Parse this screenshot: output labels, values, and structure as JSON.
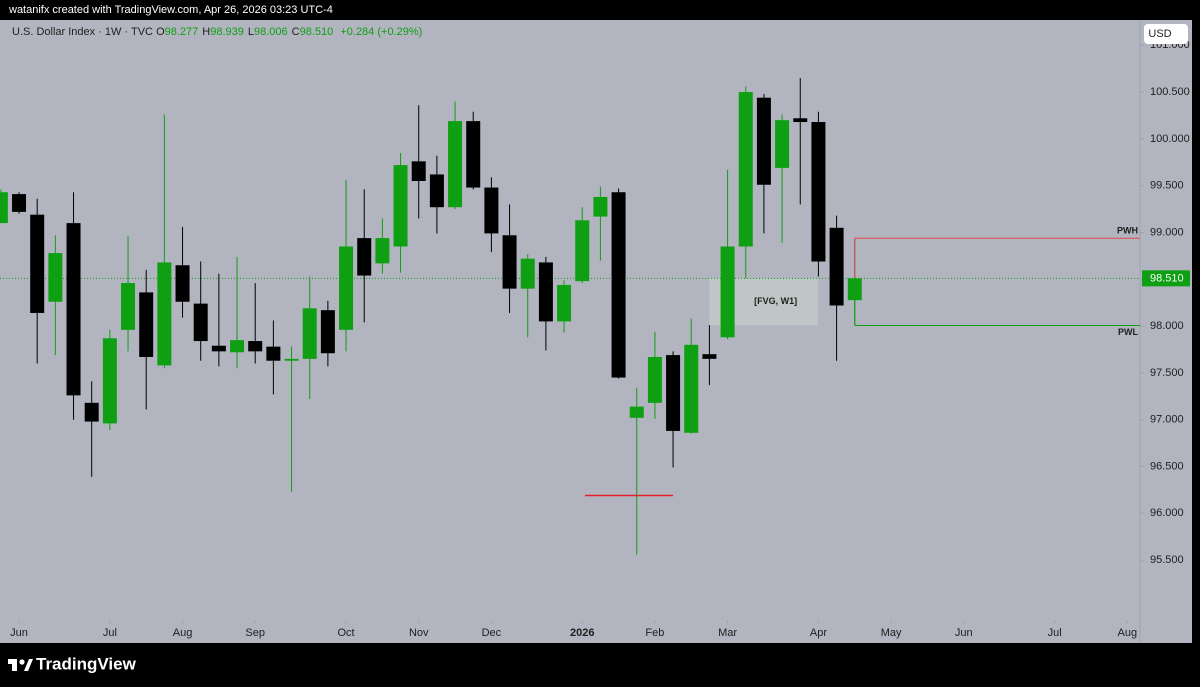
{
  "credit": "watanifx created with TradingView.com, Apr 26, 2026 03:23 UTC-4",
  "legend": {
    "symbol": "U.S. Dollar Index · 1W · TVC",
    "ohlc": [
      {
        "key": "O",
        "value": "98.277"
      },
      {
        "key": "H",
        "value": "98.939"
      },
      {
        "key": "L",
        "value": "98.006"
      },
      {
        "key": "C",
        "value": "98.510"
      }
    ],
    "change": "+0.284 (+0.29%)"
  },
  "currency": "USD",
  "brand": "TradingView",
  "chart_data": {
    "type": "candlestick",
    "categories": [
      null,
      null,
      null,
      null,
      null,
      null,
      null,
      null,
      null,
      null,
      null,
      null,
      null,
      null,
      null,
      null,
      null,
      null,
      null,
      null,
      null,
      null,
      null,
      null,
      null,
      null,
      null,
      null,
      null,
      null,
      null,
      null,
      null,
      null,
      null,
      null,
      null,
      null,
      null,
      null,
      null,
      null,
      null,
      null,
      null,
      null,
      null,
      null
    ],
    "open": [
      99.1,
      99.41,
      99.19,
      98.26,
      99.1,
      97.18,
      96.96,
      97.96,
      98.36,
      97.58,
      98.65,
      98.24,
      97.79,
      97.72,
      97.84,
      97.78,
      97.63,
      97.65,
      98.17,
      97.96,
      98.94,
      98.67,
      98.85,
      99.76,
      99.62,
      99.27,
      100.19,
      99.48,
      98.97,
      98.4,
      98.68,
      98.05,
      98.48,
      99.17,
      99.43,
      97.02,
      97.18,
      97.69,
      96.86,
      97.7,
      97.88,
      98.85,
      100.44,
      99.69,
      100.22,
      100.18,
      99.05,
      98.277
    ],
    "high": [
      99.46,
      99.43,
      99.36,
      98.97,
      99.43,
      97.41,
      97.96,
      98.96,
      98.6,
      100.26,
      99.06,
      98.69,
      98.56,
      98.74,
      98.46,
      98.06,
      97.78,
      98.53,
      98.27,
      99.56,
      99.46,
      99.15,
      99.85,
      100.36,
      99.82,
      100.4,
      100.29,
      99.59,
      99.3,
      98.77,
      98.74,
      98.49,
      99.27,
      99.49,
      99.47,
      97.34,
      97.94,
      97.73,
      98.08,
      98.01,
      99.67,
      100.56,
      100.48,
      100.26,
      100.65,
      100.29,
      99.18,
      98.939
    ],
    "low": [
      99.1,
      99.2,
      97.6,
      97.69,
      97.0,
      96.39,
      96.89,
      97.73,
      97.11,
      97.55,
      98.09,
      97.63,
      97.57,
      97.55,
      97.6,
      97.27,
      96.23,
      97.22,
      97.57,
      97.73,
      98.04,
      98.56,
      98.57,
      99.15,
      98.99,
      99.25,
      99.46,
      98.79,
      98.14,
      97.88,
      97.74,
      97.93,
      98.46,
      98.7,
      97.44,
      95.56,
      97.01,
      96.49,
      96.85,
      97.37,
      97.86,
      98.51,
      98.99,
      98.89,
      99.3,
      98.53,
      97.63,
      98.006
    ],
    "close": [
      99.43,
      99.22,
      98.14,
      98.78,
      97.26,
      96.98,
      97.87,
      98.46,
      97.67,
      98.68,
      98.26,
      97.84,
      97.73,
      97.85,
      97.73,
      97.63,
      97.65,
      98.19,
      97.71,
      98.85,
      98.54,
      98.94,
      99.72,
      99.55,
      99.27,
      100.19,
      99.48,
      98.99,
      98.4,
      98.72,
      98.05,
      98.44,
      99.13,
      99.38,
      97.45,
      97.14,
      97.67,
      96.88,
      97.8,
      97.65,
      98.85,
      100.5,
      99.51,
      100.2,
      100.18,
      98.69,
      98.22,
      98.51
    ],
    "up_color": "#0e9f12",
    "down_color": "#000000",
    "xlim": [
      -0.047,
      62.7
    ],
    "xticks": [
      {
        "value": 1,
        "label": "Jun"
      },
      {
        "value": 6,
        "label": "Jul"
      },
      {
        "value": 10,
        "label": "Aug"
      },
      {
        "value": 14,
        "label": "Sep"
      },
      {
        "value": 19,
        "label": "Oct"
      },
      {
        "value": 23,
        "label": "Nov"
      },
      {
        "value": 27,
        "label": "Dec"
      },
      {
        "value": 32,
        "label": "2026"
      },
      {
        "value": 36,
        "label": "Feb"
      },
      {
        "value": 40,
        "label": "Mar"
      },
      {
        "value": 45,
        "label": "Apr"
      },
      {
        "value": 49,
        "label": "May"
      },
      {
        "value": 53,
        "label": "Jun"
      },
      {
        "value": 58,
        "label": "Jul"
      },
      {
        "value": 62,
        "label": "Aug"
      }
    ],
    "ylim": [
      94.86,
      101.27
    ],
    "yticks": [
      {
        "value": 95.5,
        "label": "95.500"
      },
      {
        "value": 96,
        "label": "96.000"
      },
      {
        "value": 96.5,
        "label": "96.500"
      },
      {
        "value": 97,
        "label": "97.000"
      },
      {
        "value": 97.5,
        "label": "97.500"
      },
      {
        "value": 98,
        "label": "98.000"
      },
      {
        "value": 98.5,
        "label": "98.500"
      },
      {
        "value": 99,
        "label": "99.000"
      },
      {
        "value": 99.5,
        "label": "99.500"
      },
      {
        "value": 100,
        "label": "100.000"
      },
      {
        "value": 100.5,
        "label": "100.500"
      },
      {
        "value": 101,
        "label": "101.000"
      }
    ],
    "last_price": {
      "value": 98.51,
      "label": "98.510",
      "color": "#0e9f12"
    },
    "levels": [
      {
        "label": "PWH",
        "value": 98.939,
        "from": 47,
        "color": "#e0474c"
      },
      {
        "label": "PWL",
        "value": 98.006,
        "from": 47,
        "color": "#0e9f12"
      }
    ],
    "zone": {
      "label": "[FVG, W1]",
      "x": [
        39,
        44.97
      ],
      "y": [
        98.01,
        98.51
      ]
    },
    "drawn_line": {
      "value": 96.19,
      "x": [
        32.15,
        37
      ],
      "color": "#e0202a"
    }
  }
}
